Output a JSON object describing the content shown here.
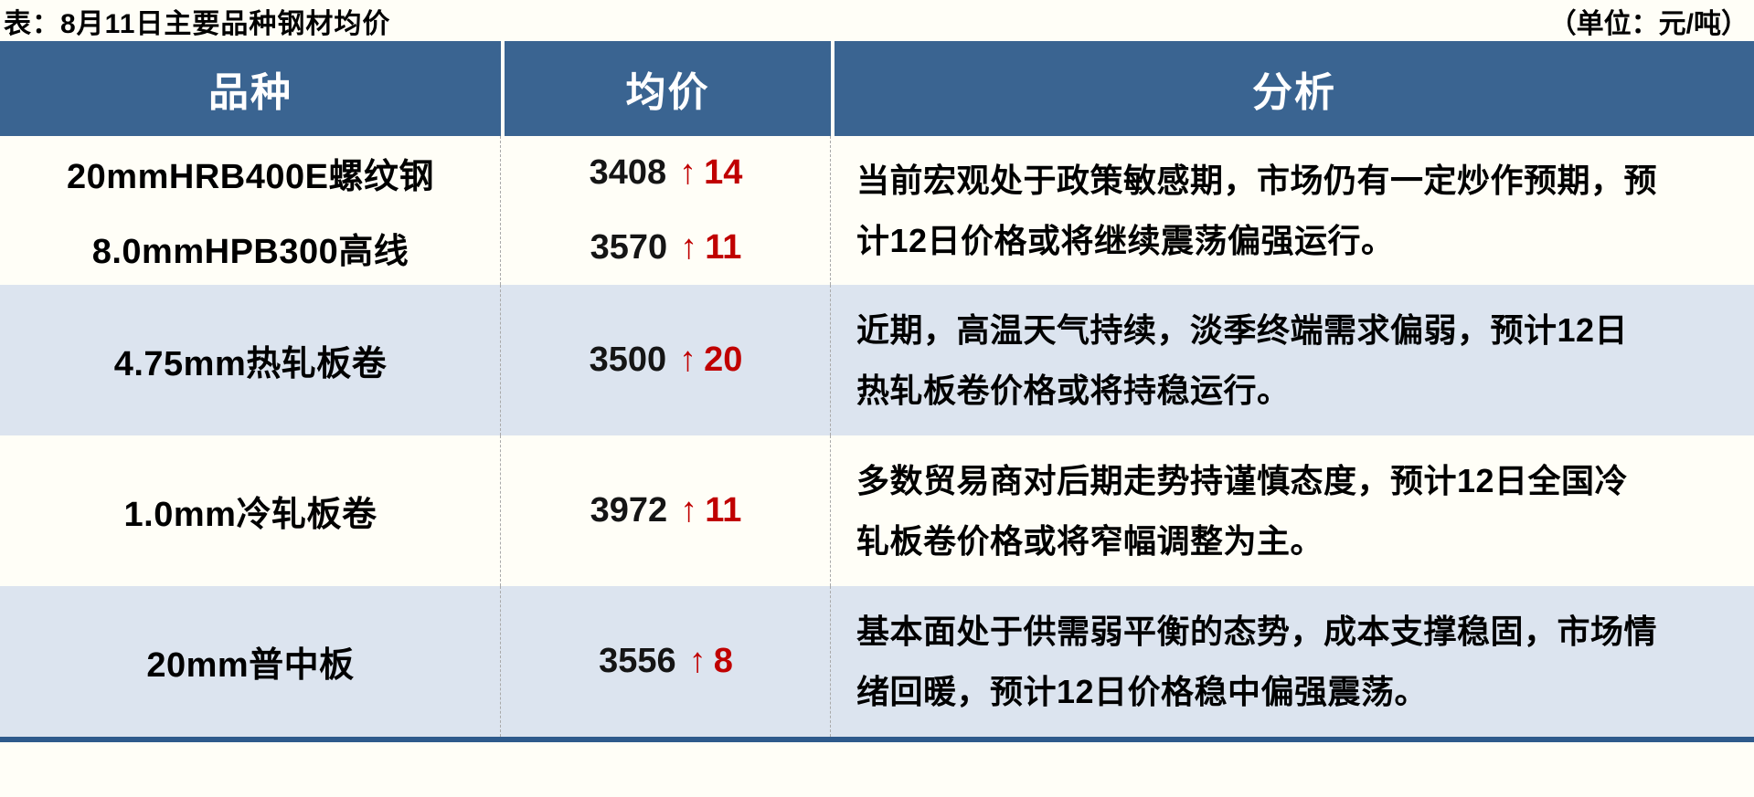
{
  "title": "表：8月11日主要品种钢材均价",
  "unit_label": "（单位：元/吨）",
  "colors": {
    "header_bg": "#3a6491",
    "row_light": "#fffef7",
    "row_blue": "#dce4ef",
    "price_up_red": "#c00000",
    "bottom_rule": "#2e5a8c"
  },
  "columns": {
    "variety": "品种",
    "price": "均价",
    "analysis": "分析"
  },
  "rows": [
    {
      "varieties": [
        {
          "name": "20mmHRB400E螺纹钢",
          "price": "3408",
          "arrow": "↑",
          "change": "14"
        },
        {
          "name": "8.0mmHPB300高线",
          "price": "3570",
          "arrow": "↑",
          "change": "11"
        }
      ],
      "analysis": "当前宏观处于政策敏感期，市场仍有一定炒作预期，预\n计12日价格或将继续震荡偏强运行。"
    },
    {
      "varieties": [
        {
          "name": "4.75mm热轧板卷",
          "price": "3500",
          "arrow": "↑",
          "change": "20"
        }
      ],
      "analysis": "近期，高温天气持续，淡季终端需求偏弱，预计12日\n热轧板卷价格或将持稳运行。"
    },
    {
      "varieties": [
        {
          "name": "1.0mm冷轧板卷",
          "price": "3972",
          "arrow": "↑",
          "change": "11"
        }
      ],
      "analysis": "多数贸易商对后期走势持谨慎态度，预计12日全国冷\n轧板卷价格或将窄幅调整为主。"
    },
    {
      "varieties": [
        {
          "name": "20mm普中板",
          "price": "3556",
          "arrow": "↑",
          "change": "8"
        }
      ],
      "analysis": "基本面处于供需弱平衡的态势，成本支撑稳固，市场情\n绪回暖，预计12日价格稳中偏强震荡。"
    }
  ]
}
